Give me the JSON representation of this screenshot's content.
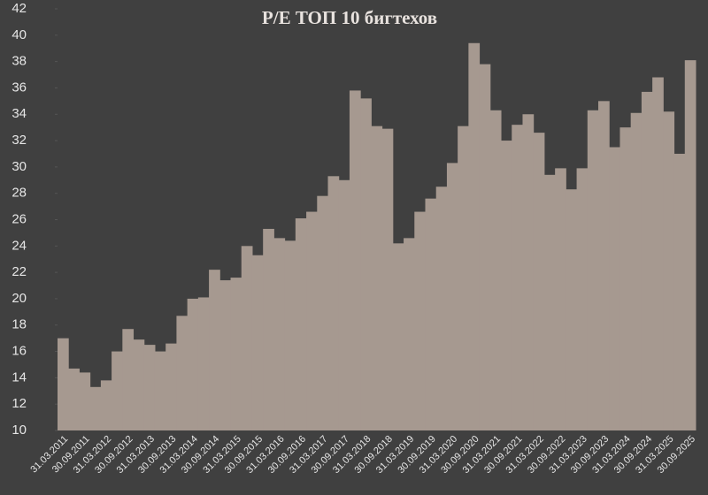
{
  "chart_data": {
    "type": "bar",
    "title": "P/E ТОП 10 бигтехов",
    "categories": [
      "31.03.2011",
      null,
      "30.09.2011",
      null,
      "31.03.2012",
      null,
      "30.09.2012",
      null,
      "31.03.2013",
      null,
      "30.09.2013",
      null,
      "31.03.2014",
      null,
      "30.09.2014",
      null,
      "31.03.2015",
      null,
      "30.09.2015",
      null,
      "31.03.2016",
      null,
      "30.09.2016",
      null,
      "31.03.2017",
      null,
      "30.09.2017",
      null,
      "31.03.2018",
      null,
      "30.09.2018",
      null,
      "31.03.2019",
      null,
      "30.09.2019",
      null,
      "31.03.2020",
      null,
      "30.09.2020",
      null,
      "31.03.2021",
      null,
      "30.09.2021",
      null,
      "31.03.2022",
      null,
      "30.09.2022",
      null,
      "31.03.2023",
      null,
      "30.09.2023",
      null,
      "31.03.2024",
      null,
      "30.09.2024",
      null,
      "31.03.2025",
      null,
      "30.09.2025"
    ],
    "values": [
      17.0,
      14.7,
      14.4,
      13.3,
      13.8,
      16.0,
      17.7,
      16.9,
      16.5,
      16.0,
      16.6,
      18.7,
      20.0,
      20.1,
      22.2,
      21.4,
      21.6,
      24.0,
      23.3,
      25.3,
      24.6,
      24.4,
      26.1,
      26.6,
      27.8,
      29.3,
      29.0,
      35.8,
      35.2,
      33.1,
      32.9,
      24.2,
      24.6,
      26.6,
      27.6,
      28.5,
      30.3,
      33.1,
      39.4,
      37.8,
      34.3,
      32.0,
      33.2,
      34.0,
      32.6,
      29.4,
      29.9,
      28.3,
      29.9,
      34.3,
      35.0,
      31.5,
      33.0,
      34.1,
      35.7,
      36.8,
      34.2,
      31.0,
      38.1
    ],
    "color": "#a69990",
    "ylim": [
      10,
      42
    ],
    "yticks": [
      10,
      12,
      14,
      16,
      18,
      20,
      22,
      24,
      26,
      28,
      30,
      32,
      34,
      36,
      38,
      40,
      42
    ],
    "grid": false
  }
}
